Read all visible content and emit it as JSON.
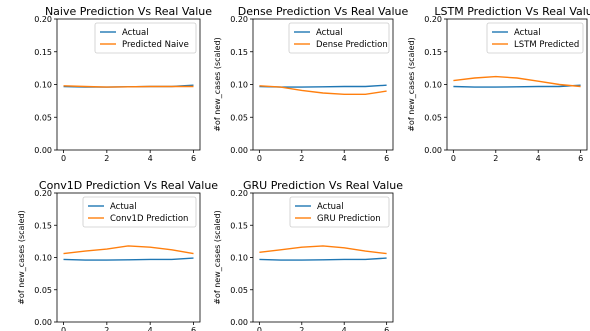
{
  "chart_data": [
    {
      "type": "line",
      "title": "Naive Prediction Vs Real Value",
      "ylabel": "",
      "x": [
        0,
        1,
        2,
        3,
        4,
        5,
        6
      ],
      "xticks": [
        0,
        2,
        4,
        6
      ],
      "yticks": [
        0.0,
        0.05,
        0.1,
        0.15,
        0.2
      ],
      "xlim": [
        -0.3,
        6.3
      ],
      "ylim": [
        0,
        0.2
      ],
      "legend": "upper-right",
      "series": [
        {
          "name": "Actual",
          "color": "#1f77b4",
          "values": [
            0.097,
            0.096,
            0.096,
            0.0965,
            0.097,
            0.097,
            0.099
          ]
        },
        {
          "name": "Predicted Naive",
          "color": "#ff7f0e",
          "values": [
            0.098,
            0.097,
            0.096,
            0.0965,
            0.097,
            0.097,
            0.097
          ]
        }
      ]
    },
    {
      "type": "line",
      "title": "Dense Prediction Vs Real Value",
      "ylabel": "#of new_cases (scaled)",
      "x": [
        0,
        1,
        2,
        3,
        4,
        5,
        6
      ],
      "xticks": [
        0,
        2,
        4,
        6
      ],
      "yticks": [
        0.0,
        0.05,
        0.1,
        0.15,
        0.2
      ],
      "xlim": [
        -0.3,
        6.3
      ],
      "ylim": [
        0,
        0.2
      ],
      "legend": "upper-right",
      "series": [
        {
          "name": "Actual",
          "color": "#1f77b4",
          "values": [
            0.097,
            0.096,
            0.096,
            0.0965,
            0.097,
            0.097,
            0.099
          ]
        },
        {
          "name": "Dense Prediction",
          "color": "#ff7f0e",
          "values": [
            0.098,
            0.096,
            0.091,
            0.087,
            0.085,
            0.085,
            0.09
          ]
        }
      ]
    },
    {
      "type": "line",
      "title": "LSTM Prediction Vs Real Value",
      "ylabel": "#of new_cases (scaled)",
      "x": [
        0,
        1,
        2,
        3,
        4,
        5,
        6
      ],
      "xticks": [
        0,
        2,
        4,
        6
      ],
      "yticks": [
        0.0,
        0.05,
        0.1,
        0.15,
        0.2
      ],
      "xlim": [
        -0.3,
        6.3
      ],
      "ylim": [
        0,
        0.2
      ],
      "legend": "upper-right",
      "series": [
        {
          "name": "Actual",
          "color": "#1f77b4",
          "values": [
            0.097,
            0.096,
            0.096,
            0.0965,
            0.097,
            0.097,
            0.099
          ]
        },
        {
          "name": "LSTM Predicted",
          "color": "#ff7f0e",
          "values": [
            0.106,
            0.11,
            0.112,
            0.11,
            0.105,
            0.1,
            0.097
          ]
        }
      ]
    },
    {
      "type": "line",
      "title": "Conv1D Prediction Vs Real Value",
      "ylabel": "#of new_cases (scaled)",
      "x": [
        0,
        1,
        2,
        3,
        4,
        5,
        6
      ],
      "xticks": [
        0,
        2,
        4,
        6
      ],
      "yticks": [
        0.0,
        0.05,
        0.1,
        0.15,
        0.2
      ],
      "xlim": [
        -0.3,
        6.3
      ],
      "ylim": [
        0,
        0.2
      ],
      "legend": "upper-right",
      "series": [
        {
          "name": "Actual",
          "color": "#1f77b4",
          "values": [
            0.097,
            0.096,
            0.096,
            0.0965,
            0.097,
            0.097,
            0.099
          ]
        },
        {
          "name": "Conv1D Prediction",
          "color": "#ff7f0e",
          "values": [
            0.106,
            0.11,
            0.113,
            0.118,
            0.116,
            0.112,
            0.106
          ]
        }
      ]
    },
    {
      "type": "line",
      "title": "GRU Prediction Vs Real Value",
      "ylabel": "#of new_cases (scaled)",
      "x": [
        0,
        1,
        2,
        3,
        4,
        5,
        6
      ],
      "xticks": [
        0,
        2,
        4,
        6
      ],
      "yticks": [
        0.0,
        0.05,
        0.1,
        0.15,
        0.2
      ],
      "xlim": [
        -0.3,
        6.3
      ],
      "ylim": [
        0,
        0.2
      ],
      "legend": "upper-right",
      "series": [
        {
          "name": "Actual",
          "color": "#1f77b4",
          "values": [
            0.097,
            0.096,
            0.096,
            0.0965,
            0.097,
            0.097,
            0.099
          ]
        },
        {
          "name": "GRU Prediction",
          "color": "#ff7f0e",
          "values": [
            0.108,
            0.112,
            0.116,
            0.118,
            0.115,
            0.11,
            0.106
          ]
        }
      ]
    }
  ]
}
